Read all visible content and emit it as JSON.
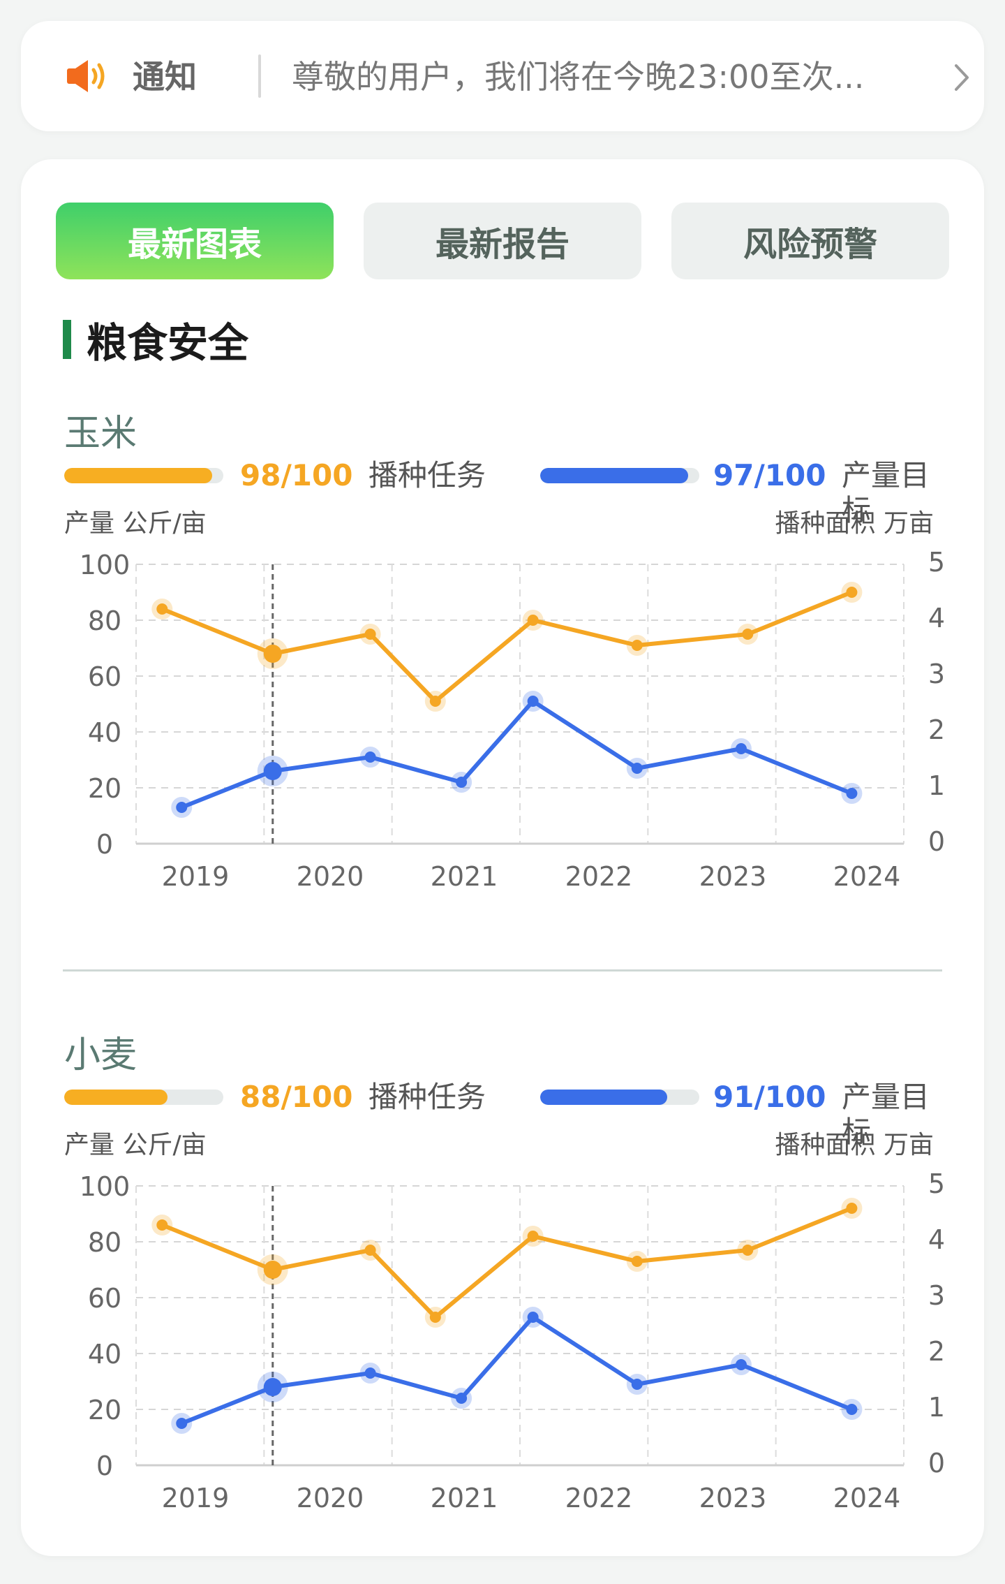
{
  "notice": {
    "title": "通知",
    "message": "尊敬的用户，我们将在今晚23:00至次..."
  },
  "tabs": [
    {
      "label": "最新图表",
      "active": true
    },
    {
      "label": "最新报告",
      "active": false
    },
    {
      "label": "风险预警",
      "active": false
    }
  ],
  "section": {
    "title": "粮食安全"
  },
  "colors": {
    "orange": "#f5a623",
    "blue": "#3a6ee8",
    "green": "#1f8a4a"
  },
  "crops": [
    {
      "name": "玉米",
      "sowing": {
        "value": "98/100",
        "label": "播种任务",
        "fraction": 0.93
      },
      "output": {
        "value": "97/100",
        "label": "产量目标",
        "fraction": 0.93
      },
      "left_axis_title": "产量 公斤/亩",
      "right_axis_title": "播种面积  万亩"
    },
    {
      "name": "小麦",
      "sowing": {
        "value": "88/100",
        "label": "播种任务",
        "fraction": 0.65
      },
      "output": {
        "value": "91/100",
        "label": "产量目标",
        "fraction": 0.8
      },
      "left_axis_title": "产量 公斤/亩",
      "right_axis_title": "播种面积  万亩"
    }
  ],
  "chart_data": [
    {
      "type": "line",
      "title": "玉米",
      "x_ticks": [
        "2019",
        "2020",
        "2021",
        "2022",
        "2023",
        "2024"
      ],
      "ylim": [
        0,
        100
      ],
      "yticks": [
        "0",
        "20",
        "40",
        "60",
        "80",
        "100"
      ],
      "y2lim": [
        0,
        5
      ],
      "y2ticks": [
        "0",
        "1",
        "2",
        "3",
        "4",
        "5"
      ],
      "ylabel": "产量 公斤/亩",
      "y2label": "播种面积  万亩",
      "grid": true,
      "highlight_index": 1,
      "series": [
        {
          "name": "播种任务",
          "color": "#f5a623",
          "axis": "left",
          "x": [
            2018.9,
            2019.75,
            2020.5,
            2021.0,
            2021.75,
            2022.55,
            2023.4,
            2024.2
          ],
          "values": [
            84,
            68,
            75,
            51,
            80,
            71,
            75,
            90
          ]
        },
        {
          "name": "产量目标",
          "color": "#3a6ee8",
          "axis": "left",
          "x": [
            2019.05,
            2019.75,
            2020.5,
            2021.2,
            2021.75,
            2022.55,
            2023.35,
            2024.2
          ],
          "values": [
            13,
            26,
            31,
            22,
            51,
            27,
            34,
            18
          ]
        }
      ]
    },
    {
      "type": "line",
      "title": "小麦",
      "x_ticks": [
        "2019",
        "2020",
        "2021",
        "2022",
        "2023",
        "2024"
      ],
      "ylim": [
        0,
        100
      ],
      "yticks": [
        "0",
        "20",
        "40",
        "60",
        "80",
        "100"
      ],
      "y2lim": [
        0,
        5
      ],
      "y2ticks": [
        "0",
        "1",
        "2",
        "3",
        "4",
        "5"
      ],
      "ylabel": "产量 公斤/亩",
      "y2label": "播种面积  万亩",
      "grid": true,
      "highlight_index": 1,
      "series": [
        {
          "name": "播种任务",
          "color": "#f5a623",
          "axis": "left",
          "x": [
            2018.9,
            2019.75,
            2020.5,
            2021.0,
            2021.75,
            2022.55,
            2023.4,
            2024.2
          ],
          "values": [
            86,
            70,
            77,
            53,
            82,
            73,
            77,
            92
          ]
        },
        {
          "name": "产量目标",
          "color": "#3a6ee8",
          "axis": "left",
          "x": [
            2019.05,
            2019.75,
            2020.5,
            2021.2,
            2021.75,
            2022.55,
            2023.35,
            2024.2
          ],
          "values": [
            15,
            28,
            33,
            24,
            53,
            29,
            36,
            20
          ]
        }
      ]
    }
  ]
}
